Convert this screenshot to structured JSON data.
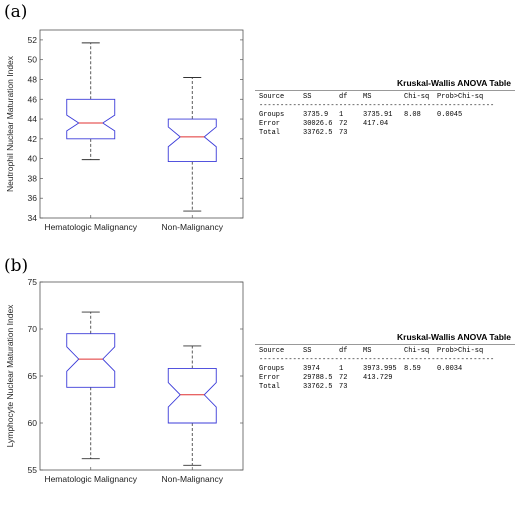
{
  "panels": [
    {
      "label": "(a)",
      "chart_data": {
        "type": "box",
        "ylabel": "Neutrophil Nuclear Maturation Index",
        "ylim": [
          34,
          53
        ],
        "yticks": [
          34,
          36,
          38,
          40,
          42,
          44,
          46,
          48,
          50,
          52
        ],
        "categories": [
          "Hematologic Malignancy",
          "Non-Malignancy"
        ],
        "boxes": [
          {
            "whisker_low": 39.9,
            "q1": 42.0,
            "median": 43.6,
            "q3": 46.0,
            "whisker_high": 51.7,
            "notch_low": 42.8,
            "notch_high": 44.4
          },
          {
            "whisker_low": 34.7,
            "q1": 39.7,
            "median": 42.2,
            "q3": 44.0,
            "whisker_high": 48.2,
            "notch_low": 41.2,
            "notch_high": 43.2
          }
        ],
        "colors": {
          "box": "#3b3bd9",
          "median": "#e03030",
          "whisker": "#333333"
        }
      },
      "anova": {
        "title": "Kruskal-Wallis ANOVA Table",
        "headers": [
          "Source",
          "SS",
          "df",
          "MS",
          "Chi-sq",
          "Prob>Chi-sq"
        ],
        "rows": [
          [
            "Groups",
            "3735.9",
            "1",
            "3735.91",
            "8.08",
            "0.0045"
          ],
          [
            "Error",
            "30026.6",
            "72",
            "417.04",
            "",
            ""
          ],
          [
            "Total",
            "33762.5",
            "73",
            "",
            "",
            ""
          ]
        ]
      }
    },
    {
      "label": "(b)",
      "chart_data": {
        "type": "box",
        "ylabel": "Lymphocyte Nuclear Maturation Index",
        "ylim": [
          55,
          75
        ],
        "yticks": [
          55,
          60,
          65,
          70,
          75
        ],
        "categories": [
          "Hematologic Malignancy",
          "Non-Malignancy"
        ],
        "boxes": [
          {
            "whisker_low": 56.2,
            "q1": 63.8,
            "median": 66.8,
            "q3": 69.5,
            "whisker_high": 71.8,
            "notch_low": 65.5,
            "notch_high": 68.1
          },
          {
            "whisker_low": 55.5,
            "q1": 60.0,
            "median": 63.0,
            "q3": 65.8,
            "whisker_high": 68.2,
            "notch_low": 61.7,
            "notch_high": 64.3
          }
        ],
        "colors": {
          "box": "#3b3bd9",
          "median": "#e03030",
          "whisker": "#333333"
        }
      },
      "anova": {
        "title": "Kruskal-Wallis ANOVA Table",
        "headers": [
          "Source",
          "SS",
          "df",
          "MS",
          "Chi-sq",
          "Prob>Chi-sq"
        ],
        "rows": [
          [
            "Groups",
            "3974",
            "1",
            "3973.995",
            "8.59",
            "0.0034"
          ],
          [
            "Error",
            "29788.5",
            "72",
            "413.729",
            "",
            ""
          ],
          [
            "Total",
            "33762.5",
            "73",
            "",
            "",
            ""
          ]
        ]
      }
    }
  ]
}
